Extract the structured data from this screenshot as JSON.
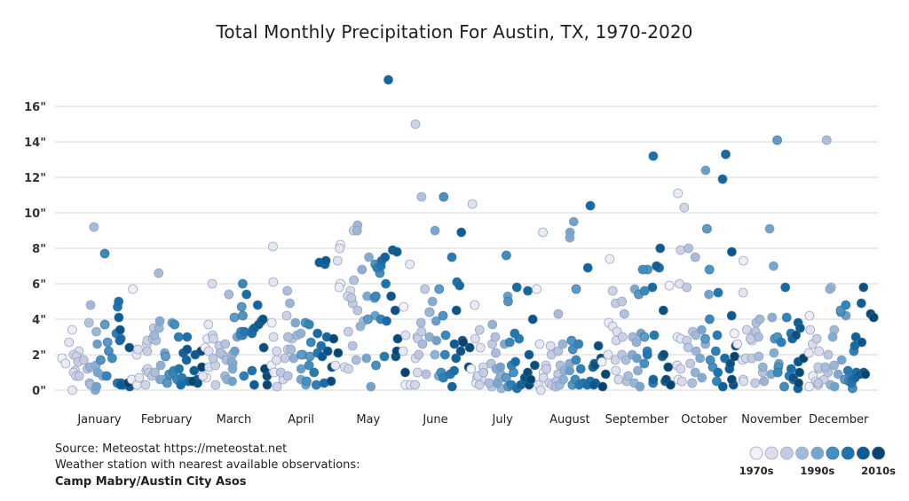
{
  "chart_data": {
    "type": "scatter",
    "title": "Total Monthly Precipitation For Austin, TX, 1970-2020",
    "xlabel": "",
    "ylabel": "",
    "categories": [
      "January",
      "February",
      "March",
      "April",
      "May",
      "June",
      "July",
      "August",
      "September",
      "October",
      "November",
      "December"
    ],
    "y_ticks": [
      0,
      2,
      4,
      6,
      8,
      10,
      12,
      14,
      16
    ],
    "y_tick_labels": [
      "0\"",
      "2\"",
      "4\"",
      "6\"",
      "8\"",
      "10\"",
      "12\"",
      "14\"",
      "16\""
    ],
    "ylim": [
      0,
      18
    ],
    "grid": true,
    "years": [
      1970,
      2020
    ],
    "color_scale": [
      "#f1f1f7",
      "#dcdeed",
      "#c3cce3",
      "#a2bad9",
      "#75a6cf",
      "#4291c3",
      "#1a75b1",
      "#0b5b94",
      "#07436e"
    ],
    "legend": {
      "placement": "bottom-right",
      "labels": [
        "1970s",
        "1990s",
        "2010s"
      ]
    },
    "values": {
      "January": [
        1.8,
        3.4,
        1.5,
        0.0,
        2.7,
        1.1,
        2.2,
        1.0,
        2.0,
        0.8,
        1.9,
        1.6,
        0.8,
        1.7,
        1.2,
        3.8,
        0.4,
        0.3,
        9.2,
        4.8,
        3.3,
        1.3,
        1.4,
        0.0,
        0.8,
        1.0,
        0.2,
        2.6,
        3.7,
        2.7,
        1.7,
        2.2,
        1.8,
        7.7,
        0.8,
        3.2,
        0.4,
        4.7,
        2.9,
        5.0,
        2.8,
        0.3,
        0.4,
        4.1,
        0.3,
        3.4,
        0.2,
        2.4,
        0.3,
        0.5,
        0.4
      ],
      "February": [
        5.7,
        0.6,
        0.3,
        2.0,
        0.7,
        2.3,
        1.1,
        2.6,
        1.2,
        0.3,
        2.8,
        2.2,
        1.0,
        3.5,
        0.8,
        2.9,
        2.8,
        1.0,
        6.6,
        3.1,
        3.5,
        0.6,
        1.4,
        3.9,
        0.6,
        2.1,
        0.8,
        3.8,
        1.9,
        0.4,
        1.1,
        0.9,
        3.7,
        0.6,
        1.0,
        3.0,
        0.7,
        1.2,
        3.0,
        0.3,
        0.5,
        1.7,
        2.1,
        1.1,
        2.0,
        2.3,
        0.6,
        0.4,
        2.2,
        0.5,
        1.3
      ],
      "March": [
        2.4,
        0.7,
        2.9,
        3.7,
        0.8,
        2.2,
        1.3,
        6.0,
        3.1,
        2.9,
        1.4,
        0.3,
        2.5,
        1.8,
        2.0,
        2.6,
        2.1,
        1.7,
        5.4,
        0.8,
        2.0,
        1.5,
        0.6,
        1.6,
        1.2,
        3.0,
        0.5,
        2.2,
        4.1,
        4.7,
        4.2,
        3.1,
        3.3,
        6.0,
        3.1,
        0.8,
        3.4,
        3.3,
        1.1,
        5.4,
        3.2,
        4.8,
        3.5,
        0.3,
        3.7,
        3.9,
        4.0,
        2.4,
        0.8,
        0.3,
        1.2
      ],
      "April": [
        1.4,
        3.8,
        1.0,
        8.1,
        6.1,
        1.7,
        3.0,
        2.2,
        0.6,
        0.2,
        4.2,
        2.3,
        1.8,
        1.0,
        2.9,
        0.8,
        3.0,
        5.6,
        2.3,
        3.1,
        4.9,
        3.2,
        1.8,
        2.0,
        3.8,
        0.6,
        0.3,
        1.2,
        2.0,
        1.9,
        3.8,
        0.5,
        1.4,
        2.7,
        3.7,
        0.3,
        1.0,
        2.1,
        2.5,
        0.4,
        3.2,
        3.0,
        7.1,
        7.2,
        7.3,
        1.9,
        2.2,
        1.3,
        0.5,
        2.9,
        2.1
      ],
      "May": [
        8.2,
        6.0,
        5.8,
        1.4,
        8.0,
        7.3,
        1.3,
        5.6,
        5.3,
        1.2,
        9.0,
        3.3,
        4.9,
        5.2,
        4.5,
        2.5,
        6.2,
        1.7,
        3.9,
        9.3,
        9.0,
        3.6,
        6.8,
        7.5,
        5.3,
        1.8,
        0.2,
        4.2,
        4.0,
        5.2,
        7.1,
        1.4,
        6.6,
        5.3,
        4.0,
        6.9,
        1.9,
        7.0,
        6.0,
        7.3,
        3.9,
        17.5,
        7.5,
        7.9,
        7.8,
        5.3,
        4.5,
        1.9,
        2.9,
        2.2,
        1.0
      ],
      "June": [
        4.7,
        0.3,
        7.1,
        2.2,
        0.3,
        3.1,
        1.8,
        1.0,
        3.0,
        0.3,
        15.0,
        2.9,
        3.3,
        5.7,
        2.0,
        0.9,
        10.9,
        3.8,
        2.6,
        4.4,
        4.4,
        2.0,
        3.0,
        5.0,
        0.8,
        9.0,
        2.8,
        3.9,
        5.7,
        0.8,
        4.2,
        10.9,
        1.0,
        3.1,
        2.0,
        0.7,
        7.5,
        0.9,
        6.1,
        1.1,
        5.9,
        0.2,
        1.8,
        8.9,
        2.6,
        4.5,
        2.2,
        2.8,
        2.4,
        1.3,
        2.7
      ],
      "July": [
        1.2,
        0.7,
        4.8,
        0.4,
        2.4,
        10.5,
        2.9,
        0.6,
        1.3,
        0.8,
        0.3,
        3.4,
        1.0,
        2.6,
        0.2,
        1.5,
        3.0,
        0.4,
        2.1,
        0.6,
        0.1,
        3.7,
        0.9,
        1.2,
        2.6,
        0.4,
        1.3,
        5.3,
        0.7,
        0.2,
        5.0,
        1.0,
        7.6,
        2.7,
        1.4,
        0.3,
        2.9,
        3.2,
        0.1,
        1.6,
        5.8,
        5.6,
        0.3,
        0.5,
        2.0,
        4.0,
        0.7,
        1.4,
        1.0,
        0.3,
        0.6
      ],
      "August": [
        5.7,
        1.0,
        8.9,
        2.6,
        0.3,
        0.0,
        2.5,
        0.7,
        1.4,
        0.4,
        1.2,
        0.3,
        2.0,
        0.9,
        0.5,
        2.2,
        1.4,
        0.2,
        4.3,
        0.3,
        2.6,
        1.1,
        0.6,
        1.5,
        8.6,
        8.9,
        9.5,
        1.1,
        5.7,
        0.3,
        2.8,
        2.3,
        0.6,
        1.7,
        2.6,
        1.2,
        0.3,
        0.4,
        0.5,
        0.3,
        10.4,
        6.9,
        1.3,
        1.5,
        0.4,
        0.3,
        1.4,
        2.5,
        1.8,
        0.9,
        0.2
      ],
      "September": [
        1.6,
        7.4,
        3.8,
        2.0,
        3.6,
        1.1,
        3.3,
        0.6,
        2.8,
        1.7,
        5.6,
        3.0,
        4.9,
        5.0,
        2.0,
        0.5,
        4.3,
        1.7,
        0.8,
        3.0,
        0.4,
        2.7,
        1.1,
        2.0,
        5.7,
        0.2,
        3.2,
        1.8,
        3.0,
        5.4,
        6.8,
        1.5,
        6.8,
        5.6,
        2.2,
        0.4,
        3.1,
        2.0,
        13.2,
        6.9,
        5.8,
        0.6,
        1.9,
        7.0,
        8.0,
        0.5,
        4.5,
        2.0,
        0.6,
        1.3,
        0.3
      ],
      "October": [
        5.9,
        0.6,
        11.1,
        3.0,
        2.9,
        1.4,
        6.0,
        0.5,
        1.2,
        10.3,
        7.9,
        2.8,
        1.5,
        5.8,
        2.4,
        3.3,
        8.0,
        0.4,
        7.5,
        3.1,
        2.2,
        1.0,
        2.6,
        0.7,
        1.8,
        3.4,
        5.4,
        12.4,
        9.1,
        2.9,
        6.8,
        1.3,
        1.7,
        4.0,
        0.5,
        2.2,
        3.1,
        5.5,
        1.0,
        1.8,
        13.3,
        11.9,
        0.2,
        1.2,
        4.2,
        7.8,
        0.3,
        1.5,
        2.5,
        0.6,
        1.9
      ],
      "November": [
        3.2,
        7.3,
        2.6,
        0.6,
        5.5,
        1.7,
        0.5,
        2.8,
        3.4,
        1.8,
        3.1,
        2.9,
        0.4,
        1.8,
        3.3,
        1.0,
        3.8,
        3.0,
        1.9,
        4.0,
        0.5,
        1.3,
        4.1,
        2.1,
        0.9,
        7.0,
        9.1,
        1.5,
        14.1,
        2.9,
        3.0,
        1.3,
        0.2,
        1.0,
        4.1,
        2.7,
        0.8,
        3.2,
        0.6,
        1.2,
        5.8,
        2.9,
        0.1,
        3.8,
        3.5,
        1.6,
        0.7,
        3.1,
        1.0,
        0.4,
        1.8
      ],
      "December": [
        0.2,
        4.2,
        0.8,
        2.1,
        0.5,
        3.4,
        2.2,
        2.6,
        0.3,
        1.2,
        0.6,
        2.9,
        1.3,
        0.4,
        2.0,
        1.0,
        5.8,
        14.1,
        1.3,
        3.4,
        1.4,
        0.3,
        5.7,
        3.0,
        0.9,
        1.7,
        0.2,
        4.2,
        0.6,
        4.4,
        4.5,
        0.8,
        0.1,
        0.5,
        4.8,
        2.2,
        1.1,
        0.4,
        0.6,
        1.0,
        2.5,
        0.7,
        3.0,
        4.9,
        0.9,
        2.7,
        5.8,
        1.0,
        4.3,
        4.1,
        0.9
      ]
    }
  },
  "footer": {
    "source": "Source: Meteostat https://meteostat.net",
    "station_note": "Weather station with nearest available observations:",
    "station_name": "Camp Mabry/Austin City Asos"
  }
}
